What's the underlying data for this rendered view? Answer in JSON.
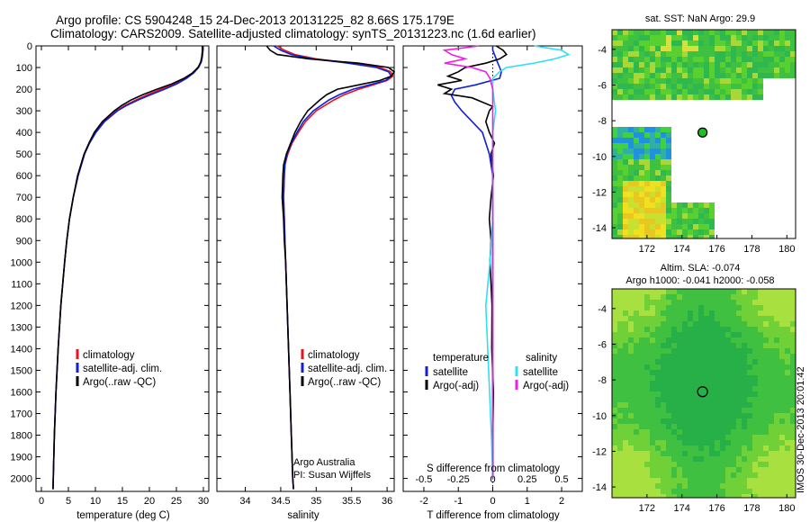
{
  "figure": {
    "title_line1": "Argo profile: CS 5904248_15 24-Dec-2013 20131225_82 8.66S 175.179E",
    "title_line2": "Climatology: CARS2009. Satellite-adjusted climatology: synTS_20131223.nc (1.6d earlier)",
    "credit_line1": "Argo Australia",
    "credit_line2": "PI: Susan Wijffels",
    "timestamp": "IMOS 30-Dec-2013 20:01:42"
  },
  "colors": {
    "climatology": "#e8141b",
    "satellite": "#1020d8",
    "argo": "#000000",
    "sal_satellite": "#30e0f0",
    "sal_argo": "#f020e0"
  },
  "chart_data": [
    {
      "type": "line",
      "id": "temperature",
      "xlabel": "temperature (deg C)",
      "ylabel": "",
      "xlim": [
        -1,
        31
      ],
      "ylim": [
        2060,
        0
      ],
      "xticks": [
        0,
        5,
        10,
        15,
        20,
        25,
        30
      ],
      "yticks": [
        0,
        100,
        200,
        300,
        400,
        500,
        600,
        700,
        800,
        900,
        1000,
        1100,
        1200,
        1300,
        1400,
        1500,
        1600,
        1700,
        1800,
        1900,
        2000
      ],
      "legend": [
        "climatology",
        "satellite-adj. clim.",
        "Argo(..raw -QC)"
      ],
      "series": [
        {
          "name": "climatology",
          "depth": [
            0,
            25,
            50,
            75,
            100,
            125,
            150,
            175,
            200,
            225,
            250,
            275,
            300,
            350,
            400,
            450,
            500,
            600,
            700,
            800,
            900,
            1000,
            1200,
            1400,
            1600,
            1800,
            2000,
            2050
          ],
          "values": [
            29.9,
            29.9,
            29.8,
            29.6,
            29.0,
            28.0,
            26.5,
            24.6,
            22.2,
            19.7,
            17.5,
            15.5,
            13.9,
            11.6,
            10.0,
            8.9,
            8.0,
            6.8,
            5.9,
            5.2,
            4.7,
            4.3,
            3.6,
            3.1,
            2.7,
            2.4,
            2.2,
            2.15
          ]
        },
        {
          "name": "satellite-adj. clim.",
          "depth": [
            0,
            25,
            50,
            75,
            100,
            125,
            150,
            175,
            200,
            225,
            250,
            275,
            300,
            350,
            400,
            450,
            500,
            600,
            700,
            800,
            900,
            1000,
            1200,
            1400,
            1600,
            1800,
            2000,
            2050
          ],
          "values": [
            29.9,
            29.9,
            29.8,
            29.6,
            29.1,
            28.2,
            26.9,
            25.1,
            22.8,
            20.3,
            17.9,
            15.8,
            14.1,
            11.7,
            10.1,
            8.9,
            8.0,
            6.8,
            5.9,
            5.2,
            4.7,
            4.3,
            3.6,
            3.1,
            2.7,
            2.4,
            2.2,
            2.15
          ]
        },
        {
          "name": "Argo(..raw -QC)",
          "depth": [
            0,
            25,
            50,
            75,
            100,
            125,
            150,
            175,
            200,
            225,
            250,
            275,
            300,
            350,
            400,
            450,
            500,
            600,
            700,
            800,
            900,
            1000,
            1200,
            1400,
            1600,
            1800,
            2000,
            2050
          ],
          "values": [
            29.8,
            29.8,
            29.7,
            29.5,
            29.0,
            28.0,
            26.4,
            24.2,
            21.4,
            18.8,
            16.6,
            14.9,
            13.5,
            11.3,
            9.8,
            8.8,
            7.9,
            6.7,
            5.9,
            5.2,
            4.7,
            4.3,
            3.6,
            3.1,
            2.7,
            2.4,
            2.2,
            2.15
          ]
        }
      ]
    },
    {
      "type": "line",
      "id": "salinity",
      "xlabel": "salinity",
      "xlim": [
        33.6,
        36.1
      ],
      "ylim": [
        2060,
        0
      ],
      "xticks": [
        34,
        34.5,
        35,
        35.5,
        36
      ],
      "legend": [
        "climatology",
        "satellite-adj. clim.",
        "Argo(..raw -QC)"
      ],
      "series": [
        {
          "name": "climatology",
          "depth": [
            0,
            20,
            40,
            60,
            80,
            100,
            120,
            140,
            160,
            180,
            200,
            225,
            250,
            300,
            350,
            400,
            450,
            500,
            550,
            600,
            700,
            800,
            900,
            1000,
            1200,
            1400,
            1600,
            1800,
            2000,
            2050
          ],
          "values": [
            34.45,
            34.55,
            34.7,
            35.0,
            35.5,
            35.9,
            36.05,
            36.08,
            36.0,
            35.8,
            35.6,
            35.4,
            35.25,
            35.0,
            34.85,
            34.75,
            34.66,
            34.6,
            34.56,
            34.55,
            34.54,
            34.55,
            34.56,
            34.57,
            34.59,
            34.61,
            34.63,
            34.65,
            34.67,
            34.68
          ]
        },
        {
          "name": "satellite-adj. clim.",
          "depth": [
            0,
            20,
            40,
            60,
            80,
            100,
            120,
            140,
            160,
            180,
            200,
            225,
            250,
            300,
            350,
            400,
            450,
            500,
            550,
            600,
            700,
            800,
            900,
            1000,
            1200,
            1400,
            1600,
            1800,
            2000,
            2050
          ],
          "values": [
            34.4,
            34.5,
            34.65,
            34.95,
            35.45,
            35.85,
            36.02,
            36.06,
            35.98,
            35.75,
            35.52,
            35.33,
            35.18,
            34.96,
            34.82,
            34.73,
            34.65,
            34.59,
            34.56,
            34.55,
            34.54,
            34.55,
            34.56,
            34.57,
            34.59,
            34.61,
            34.63,
            34.65,
            34.67,
            34.68
          ]
        },
        {
          "name": "Argo(..raw -QC)",
          "depth": [
            0,
            20,
            40,
            60,
            80,
            100,
            120,
            140,
            160,
            180,
            200,
            225,
            250,
            300,
            350,
            400,
            450,
            500,
            550,
            600,
            700,
            800,
            900,
            1000,
            1200,
            1400,
            1600,
            1800,
            2000,
            2050
          ],
          "values": [
            34.3,
            34.35,
            34.45,
            34.9,
            35.6,
            36.02,
            36.1,
            36.06,
            35.9,
            35.6,
            35.3,
            35.15,
            35.05,
            34.88,
            34.78,
            34.7,
            34.64,
            34.58,
            34.54,
            34.53,
            34.52,
            34.54,
            34.55,
            34.57,
            34.59,
            34.61,
            34.63,
            34.65,
            34.67,
            34.68
          ]
        }
      ]
    },
    {
      "type": "line",
      "id": "difference",
      "xlabel_bottom": "T difference from climatology",
      "xlabel_top": "S difference from climatology",
      "xlim": [
        -2.6,
        2.6
      ],
      "ylim": [
        2060,
        0
      ],
      "xticks": [
        -2,
        -1,
        0,
        1,
        2
      ],
      "top_ticks": [
        -0.5,
        -0.25,
        0,
        0.25,
        0.5
      ],
      "legend_temperature_title": "temperature",
      "legend_salinity_title": "salinity",
      "legend": [
        "satellite",
        "Argo(-adj)",
        "satellite",
        "Argo(-adj)"
      ],
      "series": [
        {
          "name": "temperature satellite",
          "depth": [
            0,
            20,
            40,
            60,
            80,
            100,
            120,
            150,
            180,
            200,
            230,
            260,
            300,
            350,
            400,
            500,
            600,
            800,
            1000,
            1500,
            2000
          ],
          "values": [
            0.0,
            0.0,
            0.05,
            0.1,
            0.15,
            0.2,
            0.25,
            0.2,
            -0.5,
            -1.1,
            -1.2,
            -1.1,
            -0.9,
            -0.6,
            -0.3,
            -0.1,
            0.0,
            0.0,
            0.0,
            0.0,
            0.0
          ]
        },
        {
          "name": "temperature Argo(-adj)",
          "depth": [
            0,
            20,
            40,
            60,
            80,
            100,
            120,
            140,
            160,
            180,
            200,
            220,
            240,
            260,
            280,
            300,
            350,
            400,
            450,
            500,
            600,
            700,
            800,
            900,
            1000,
            1100,
            1200,
            1400,
            1600,
            1800,
            2000
          ],
          "values": [
            0.1,
            0.3,
            0.4,
            0.2,
            -0.2,
            -0.8,
            -1.0,
            -1.3,
            -0.9,
            -1.6,
            -1.2,
            -1.4,
            -0.6,
            -0.3,
            0.0,
            -0.1,
            -0.2,
            -0.1,
            0.05,
            -0.05,
            0.02,
            -0.05,
            -0.1,
            -0.05,
            -0.08,
            -0.05,
            -0.02,
            -0.03,
            0.02,
            0.0,
            0.0
          ]
        },
        {
          "name": "salinity satellite",
          "depth": [
            0,
            20,
            40,
            60,
            80,
            100,
            120,
            150,
            200,
            300,
            400,
            600,
            800,
            1000,
            1200,
            1500,
            1800,
            2000
          ],
          "values": [
            0.3,
            0.5,
            0.55,
            0.45,
            0.3,
            0.1,
            0.05,
            0.0,
            0.0,
            0.02,
            0.0,
            0.0,
            0.0,
            -0.02,
            -0.05,
            -0.03,
            -0.01,
            0.0
          ]
        },
        {
          "name": "salinity Argo(-adj)",
          "depth": [
            0,
            20,
            40,
            60,
            80,
            100,
            120,
            150,
            200,
            300,
            400,
            600,
            800,
            1000,
            1500,
            2000
          ],
          "values": [
            -0.1,
            -0.35,
            -0.3,
            -0.2,
            -0.35,
            -0.15,
            -0.05,
            -0.02,
            0.0,
            0.0,
            0.0,
            0.0,
            0.0,
            0.0,
            0.0,
            0.0
          ]
        }
      ]
    },
    {
      "type": "heatmap",
      "id": "sst-map",
      "title": "sat. SST: NaN Argo: 29.9",
      "xlim": [
        170,
        180.5
      ],
      "ylim": [
        -14.6,
        -2.9
      ],
      "xticks": [
        172,
        174,
        176,
        178,
        180
      ],
      "yticks": [
        -4,
        -6,
        -8,
        -10,
        -12,
        -14
      ],
      "argo_position": {
        "lon": 175.179,
        "lat": -8.66
      }
    },
    {
      "type": "heatmap",
      "id": "sla-map",
      "title_line1": "Altim. SLA: -0.074",
      "title_line2": "Argo h1000: -0.041 h2000: -0.058",
      "xlim": [
        170,
        180.5
      ],
      "ylim": [
        -14.6,
        -2.9
      ],
      "xticks": [
        172,
        174,
        176,
        178,
        180
      ],
      "yticks": [
        -4,
        -6,
        -8,
        -10,
        -12,
        -14
      ],
      "argo_position": {
        "lon": 175.179,
        "lat": -8.66
      }
    }
  ]
}
